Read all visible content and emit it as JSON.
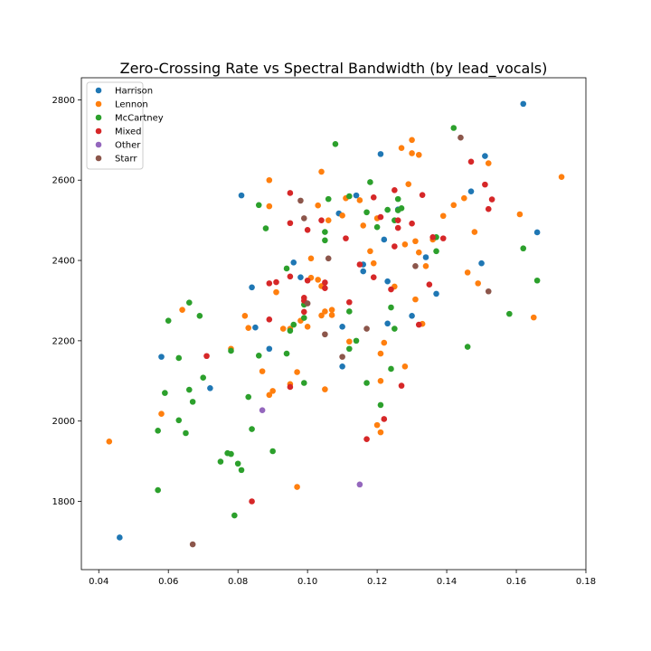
{
  "chart_data": {
    "type": "scatter",
    "title": "Zero-Crossing Rate vs Spectral Bandwidth (by lead_vocals)",
    "xlabel": "",
    "ylabel": "",
    "xlim": [
      0.035,
      0.18
    ],
    "ylim": [
      1630,
      2855
    ],
    "xticks": [
      "0.04",
      "0.06",
      "0.08",
      "0.10",
      "0.12",
      "0.14",
      "0.16",
      "0.18"
    ],
    "xtick_values": [
      0.04,
      0.06,
      0.08,
      0.1,
      0.12,
      0.14,
      0.16,
      0.18
    ],
    "yticks": [
      "1800",
      "2000",
      "2200",
      "2400",
      "2600",
      "2800"
    ],
    "ytick_values": [
      1800,
      2000,
      2200,
      2400,
      2600,
      2800
    ],
    "grid": false,
    "legend_position": "top-left",
    "series": [
      {
        "name": "Harrison",
        "color": "#1f77b4",
        "points": [
          [
            0.046,
            1710
          ],
          [
            0.058,
            2160
          ],
          [
            0.072,
            2082
          ],
          [
            0.081,
            2562
          ],
          [
            0.084,
            2333
          ],
          [
            0.085,
            2233
          ],
          [
            0.089,
            2180
          ],
          [
            0.096,
            2395
          ],
          [
            0.098,
            2358
          ],
          [
            0.109,
            2517
          ],
          [
            0.11,
            2235
          ],
          [
            0.11,
            2136
          ],
          [
            0.114,
            2562
          ],
          [
            0.116,
            2373
          ],
          [
            0.116,
            2390
          ],
          [
            0.121,
            2665
          ],
          [
            0.122,
            2452
          ],
          [
            0.123,
            2348
          ],
          [
            0.123,
            2243
          ],
          [
            0.126,
            2527
          ],
          [
            0.13,
            2262
          ],
          [
            0.134,
            2408
          ],
          [
            0.137,
            2317
          ],
          [
            0.147,
            2572
          ],
          [
            0.15,
            2393
          ],
          [
            0.151,
            2660
          ],
          [
            0.162,
            2790
          ],
          [
            0.166,
            2470
          ]
        ]
      },
      {
        "name": "Lennon",
        "color": "#ff7f0e",
        "points": [
          [
            0.043,
            1949
          ],
          [
            0.058,
            2018
          ],
          [
            0.064,
            2277
          ],
          [
            0.078,
            2180
          ],
          [
            0.082,
            2262
          ],
          [
            0.083,
            2232
          ],
          [
            0.087,
            2124
          ],
          [
            0.089,
            2600
          ],
          [
            0.089,
            2535
          ],
          [
            0.089,
            2065
          ],
          [
            0.09,
            2075
          ],
          [
            0.091,
            2321
          ],
          [
            0.093,
            2230
          ],
          [
            0.095,
            2092
          ],
          [
            0.095,
            2230
          ],
          [
            0.097,
            2122
          ],
          [
            0.097,
            1836
          ],
          [
            0.098,
            2250
          ],
          [
            0.1,
            2235
          ],
          [
            0.101,
            2405
          ],
          [
            0.101,
            2357
          ],
          [
            0.103,
            2537
          ],
          [
            0.103,
            2352
          ],
          [
            0.104,
            2621
          ],
          [
            0.104,
            2336
          ],
          [
            0.104,
            2263
          ],
          [
            0.105,
            2273
          ],
          [
            0.105,
            2079
          ],
          [
            0.106,
            2500
          ],
          [
            0.107,
            2277
          ],
          [
            0.107,
            2264
          ],
          [
            0.11,
            2512
          ],
          [
            0.111,
            2555
          ],
          [
            0.112,
            2198
          ],
          [
            0.115,
            2550
          ],
          [
            0.116,
            2487
          ],
          [
            0.118,
            2423
          ],
          [
            0.119,
            2393
          ],
          [
            0.12,
            2505
          ],
          [
            0.12,
            1990
          ],
          [
            0.121,
            2168
          ],
          [
            0.121,
            2100
          ],
          [
            0.122,
            2195
          ],
          [
            0.121,
            1972
          ],
          [
            0.125,
            2335
          ],
          [
            0.127,
            2680
          ],
          [
            0.128,
            2440
          ],
          [
            0.128,
            2136
          ],
          [
            0.129,
            2590
          ],
          [
            0.13,
            2667
          ],
          [
            0.13,
            2700
          ],
          [
            0.131,
            2448
          ],
          [
            0.131,
            2303
          ],
          [
            0.132,
            2663
          ],
          [
            0.132,
            2420
          ],
          [
            0.133,
            2242
          ],
          [
            0.134,
            2386
          ],
          [
            0.136,
            2452
          ],
          [
            0.139,
            2511
          ],
          [
            0.142,
            2538
          ],
          [
            0.145,
            2555
          ],
          [
            0.146,
            2370
          ],
          [
            0.148,
            2471
          ],
          [
            0.149,
            2343
          ],
          [
            0.152,
            2642
          ],
          [
            0.161,
            2515
          ],
          [
            0.165,
            2258
          ],
          [
            0.173,
            2608
          ]
        ]
      },
      {
        "name": "McCartney",
        "color": "#2ca02c",
        "points": [
          [
            0.057,
            1828
          ],
          [
            0.057,
            1976
          ],
          [
            0.059,
            2070
          ],
          [
            0.06,
            2250
          ],
          [
            0.063,
            2002
          ],
          [
            0.063,
            2157
          ],
          [
            0.065,
            1970
          ],
          [
            0.066,
            2295
          ],
          [
            0.066,
            2078
          ],
          [
            0.067,
            2048
          ],
          [
            0.069,
            2262
          ],
          [
            0.07,
            2108
          ],
          [
            0.075,
            1899
          ],
          [
            0.077,
            1920
          ],
          [
            0.078,
            1918
          ],
          [
            0.078,
            2175
          ],
          [
            0.079,
            1765
          ],
          [
            0.08,
            1894
          ],
          [
            0.081,
            1878
          ],
          [
            0.083,
            2060
          ],
          [
            0.084,
            1980
          ],
          [
            0.086,
            2538
          ],
          [
            0.086,
            2163
          ],
          [
            0.088,
            2480
          ],
          [
            0.09,
            1925
          ],
          [
            0.094,
            2168
          ],
          [
            0.094,
            2380
          ],
          [
            0.095,
            2225
          ],
          [
            0.096,
            2240
          ],
          [
            0.099,
            2257
          ],
          [
            0.099,
            2095
          ],
          [
            0.099,
            2290
          ],
          [
            0.105,
            2471
          ],
          [
            0.105,
            2450
          ],
          [
            0.106,
            2553
          ],
          [
            0.108,
            2690
          ],
          [
            0.112,
            2180
          ],
          [
            0.112,
            2273
          ],
          [
            0.112,
            2560
          ],
          [
            0.114,
            2200
          ],
          [
            0.117,
            2095
          ],
          [
            0.117,
            2520
          ],
          [
            0.118,
            2595
          ],
          [
            0.12,
            2483
          ],
          [
            0.121,
            2040
          ],
          [
            0.123,
            2526
          ],
          [
            0.124,
            2130
          ],
          [
            0.124,
            2283
          ],
          [
            0.125,
            2230
          ],
          [
            0.125,
            2500
          ],
          [
            0.126,
            2553
          ],
          [
            0.126,
            2525
          ],
          [
            0.127,
            2530
          ],
          [
            0.137,
            2458
          ],
          [
            0.137,
            2423
          ],
          [
            0.142,
            2730
          ],
          [
            0.146,
            2185
          ],
          [
            0.158,
            2267
          ],
          [
            0.162,
            2430
          ],
          [
            0.166,
            2350
          ]
        ]
      },
      {
        "name": "Mixed",
        "color": "#d62728",
        "points": [
          [
            0.071,
            2162
          ],
          [
            0.084,
            1800
          ],
          [
            0.089,
            2253
          ],
          [
            0.089,
            2343
          ],
          [
            0.091,
            2346
          ],
          [
            0.095,
            2360
          ],
          [
            0.095,
            2085
          ],
          [
            0.095,
            2493
          ],
          [
            0.095,
            2568
          ],
          [
            0.099,
            2300
          ],
          [
            0.099,
            2307
          ],
          [
            0.099,
            2272
          ],
          [
            0.1,
            2350
          ],
          [
            0.1,
            2476
          ],
          [
            0.104,
            2500
          ],
          [
            0.105,
            2331
          ],
          [
            0.105,
            2345
          ],
          [
            0.111,
            2455
          ],
          [
            0.112,
            2296
          ],
          [
            0.115,
            2390
          ],
          [
            0.117,
            1955
          ],
          [
            0.119,
            2358
          ],
          [
            0.119,
            2557
          ],
          [
            0.121,
            2508
          ],
          [
            0.122,
            2005
          ],
          [
            0.124,
            2328
          ],
          [
            0.125,
            2575
          ],
          [
            0.125,
            2435
          ],
          [
            0.126,
            2500
          ],
          [
            0.126,
            2481
          ],
          [
            0.127,
            2088
          ],
          [
            0.13,
            2492
          ],
          [
            0.132,
            2240
          ],
          [
            0.133,
            2563
          ],
          [
            0.135,
            2340
          ],
          [
            0.136,
            2458
          ],
          [
            0.139,
            2455
          ],
          [
            0.147,
            2646
          ],
          [
            0.151,
            2589
          ],
          [
            0.152,
            2528
          ],
          [
            0.153,
            2552
          ]
        ]
      },
      {
        "name": "Other",
        "color": "#9467bd",
        "points": [
          [
            0.087,
            2027
          ],
          [
            0.115,
            1842
          ]
        ]
      },
      {
        "name": "Starr",
        "color": "#8c564b",
        "points": [
          [
            0.067,
            1693
          ],
          [
            0.098,
            2549
          ],
          [
            0.099,
            2505
          ],
          [
            0.1,
            2293
          ],
          [
            0.105,
            2216
          ],
          [
            0.106,
            2405
          ],
          [
            0.11,
            2160
          ],
          [
            0.117,
            2230
          ],
          [
            0.131,
            2386
          ],
          [
            0.144,
            2706
          ],
          [
            0.152,
            2323
          ]
        ]
      }
    ]
  }
}
